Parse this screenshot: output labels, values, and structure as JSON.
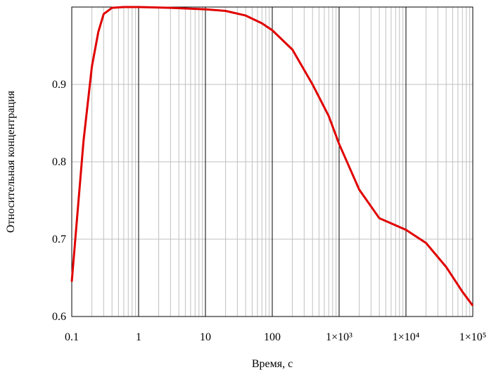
{
  "chart_data": {
    "type": "line",
    "x_label": "Время, с",
    "y_label": "Относительная концентрация",
    "xscale": "log",
    "xlim": [
      0.1,
      100000
    ],
    "ylim": [
      0.6,
      1.0
    ],
    "xticks": [
      0.1,
      1,
      10,
      100,
      {
        "value": 1000,
        "label": "1×10³"
      },
      {
        "value": 10000,
        "label": "1×10⁴"
      },
      {
        "value": 100000,
        "label": "1×10⁵"
      }
    ],
    "xminorticks": [
      0.2,
      0.3,
      0.4,
      0.5,
      0.6,
      0.7,
      0.8,
      0.9,
      2,
      3,
      4,
      5,
      6,
      7,
      8,
      9,
      20,
      30,
      40,
      50,
      60,
      70,
      80,
      90,
      200,
      300,
      400,
      500,
      600,
      700,
      800,
      900,
      2000,
      3000,
      4000,
      5000,
      6000,
      7000,
      8000,
      9000,
      20000,
      30000,
      40000,
      50000,
      60000,
      70000,
      80000,
      90000
    ],
    "yticks": [
      0.6,
      0.7,
      0.8,
      0.9
    ],
    "grid": true,
    "series": [
      {
        "color": "#e00000",
        "x": [
          0.1,
          0.12,
          0.15,
          0.2,
          0.25,
          0.3,
          0.4,
          0.6,
          1,
          3,
          10,
          20,
          40,
          70,
          100,
          200,
          400,
          700,
          1000,
          2000,
          4000,
          10000,
          20000,
          40000,
          70000,
          100000
        ],
        "values": [
          0.645,
          0.727,
          0.827,
          0.923,
          0.968,
          0.991,
          0.999,
          1.0,
          1.0,
          0.999,
          0.997,
          0.995,
          0.989,
          0.979,
          0.97,
          0.945,
          0.9,
          0.859,
          0.823,
          0.764,
          0.727,
          0.712,
          0.695,
          0.664,
          0.632,
          0.614
        ]
      }
    ]
  }
}
